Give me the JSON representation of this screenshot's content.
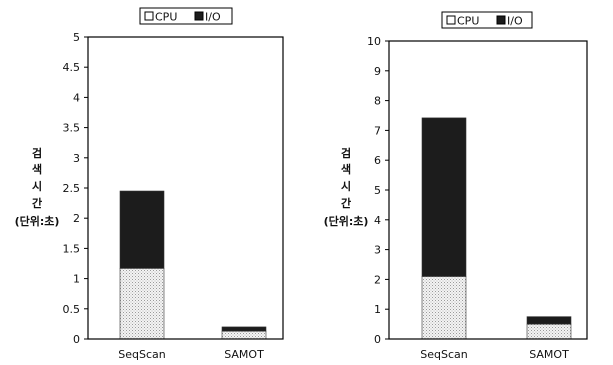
{
  "colors": {
    "cpu_fill": "#e8e8e8",
    "io_fill": "#1c1c1c",
    "axis": "#000000"
  },
  "chart_data": [
    {
      "type": "bar",
      "stacked": true,
      "categories": [
        "SeqScan",
        "SAMOT"
      ],
      "series": [
        {
          "name": "CPU",
          "values": [
            1.17,
            0.13
          ]
        },
        {
          "name": "I/O",
          "values": [
            1.28,
            0.07
          ]
        }
      ],
      "ylabel": [
        "검",
        "색",
        "시",
        "간",
        "(단위:초)"
      ],
      "ylim": [
        0,
        5
      ],
      "yticks": [
        "0",
        "0.5",
        "1",
        "1.5",
        "2",
        "2.5",
        "3",
        "3.5",
        "4",
        "4.5",
        "5"
      ],
      "legend": "top-center",
      "grid": false
    },
    {
      "type": "bar",
      "stacked": true,
      "categories": [
        "SeqScan",
        "SAMOT"
      ],
      "series": [
        {
          "name": "CPU",
          "values": [
            2.1,
            0.5
          ]
        },
        {
          "name": "I/O",
          "values": [
            5.32,
            0.25
          ]
        }
      ],
      "ylabel": [
        "검",
        "색",
        "시",
        "간",
        "(단위:초)"
      ],
      "ylim": [
        0,
        10
      ],
      "yticks": [
        "0",
        "1",
        "2",
        "3",
        "4",
        "5",
        "6",
        "7",
        "8",
        "9",
        "10"
      ],
      "legend": "top-center",
      "grid": false
    }
  ]
}
